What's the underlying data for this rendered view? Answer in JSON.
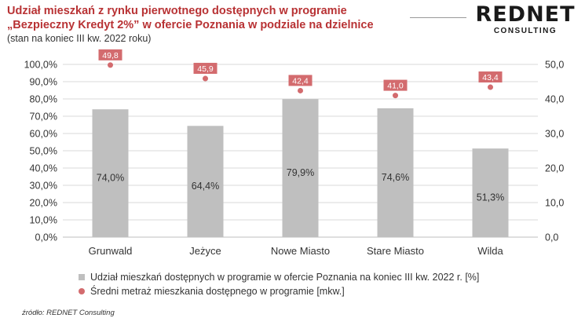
{
  "header": {
    "title_line1": "Udział mieszkań z rynku pierwotnego dostępnych w programie",
    "title_line2": "„Bezpieczny Kredyt 2%” w ofercie Poznania w podziale na dzielnice",
    "subtitle": "(stan na koniec III kw. 2022 roku)"
  },
  "logo": {
    "main": "REDNET",
    "sub": "CONSULTING"
  },
  "source": "źródło: REDNET Consulting",
  "colors": {
    "bar": "#bfbfbf",
    "marker": "#d36b6e",
    "title": "#b83234",
    "grid": "#d9d9d9"
  },
  "chart_data": {
    "type": "bar",
    "categories": [
      "Grunwald",
      "Jeżyce",
      "Nowe Miasto",
      "Stare Miasto",
      "Wilda"
    ],
    "series": [
      {
        "name": "Udział mieszkań dostępnych w programie w ofercie Poznania na koniec III kw. 2022 r. [%]",
        "type": "bar",
        "axis": "left",
        "values": [
          74.0,
          64.4,
          79.9,
          74.6,
          51.3
        ],
        "labels": [
          "74,0%",
          "64,4%",
          "79,9%",
          "74,6%",
          "51,3%"
        ]
      },
      {
        "name": "Średni metraż mieszkania dostępnego w programie [mkw.]",
        "type": "scatter",
        "axis": "right",
        "values": [
          49.8,
          45.9,
          42.4,
          41.0,
          43.4
        ],
        "labels": [
          "49,8",
          "45,9",
          "42,4",
          "41,0",
          "43,4"
        ]
      }
    ],
    "y_left": {
      "ylim": [
        0,
        100
      ],
      "ticks": [
        "0,0%",
        "10,0%",
        "20,0%",
        "30,0%",
        "40,0%",
        "50,0%",
        "60,0%",
        "70,0%",
        "80,0%",
        "90,0%",
        "100,0%"
      ]
    },
    "y_right": {
      "ylim": [
        0,
        50
      ],
      "ticks": [
        "0,0",
        "10,0",
        "20,0",
        "30,0",
        "40,0",
        "50,0"
      ]
    },
    "grid": true,
    "legend_position": "bottom"
  }
}
